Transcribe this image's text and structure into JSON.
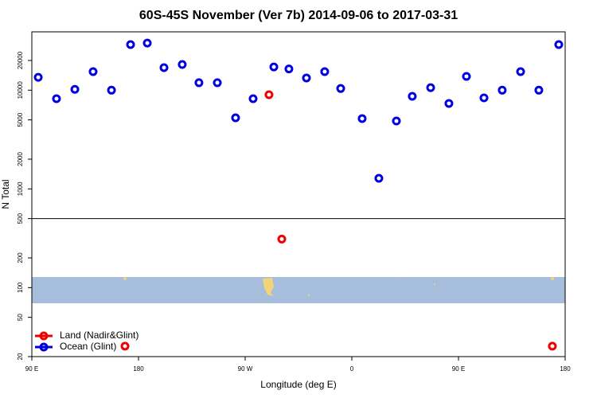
{
  "chart_data": {
    "type": "scatter",
    "title": "60S-45S November (Ver 7b)   2014-09-06 to 2017-03-31",
    "x_label": "Longitude (deg E)",
    "y_label": "N Total",
    "log_y": true,
    "xlim": [
      90,
      540
    ],
    "ylim": [
      20,
      39000
    ],
    "xticks": [
      {
        "value": 90,
        "label": "90 E"
      },
      {
        "value": 180,
        "label": "180"
      },
      {
        "value": 270,
        "label": "90 W"
      },
      {
        "value": 360,
        "label": "0"
      },
      {
        "value": 450,
        "label": "90 E"
      },
      {
        "value": 540,
        "label": "180"
      }
    ],
    "yticks": [
      20,
      50,
      100,
      200,
      500,
      1000,
      2000,
      5000,
      10000,
      20000
    ],
    "reference_line": 500,
    "legend": "bottom-left",
    "series": [
      {
        "name": "Land (Nadir&Glint)",
        "color": "#ee0000",
        "x": [
          290.1,
          300.9,
          168.6,
          529.2
        ],
        "values": [
          9000,
          310,
          25.5,
          25.5
        ]
      },
      {
        "name": "Ocean (Glint)",
        "color": "#0000dd",
        "x": [
          95.4,
          110.8,
          126.3,
          141.7,
          157.2,
          173.3,
          187.4,
          201.5,
          216.9,
          231.0,
          246.5,
          261.9,
          276.7,
          294.2,
          306.9,
          321.7,
          337.1,
          350.6,
          368.7,
          382.8,
          397.6,
          411.0,
          426.5,
          441.9,
          456.7,
          471.5,
          486.9,
          502.4,
          517.8,
          534.6
        ],
        "values": [
          13500,
          8200,
          10200,
          15400,
          10000,
          29000,
          30000,
          16900,
          18200,
          11900,
          11900,
          5250,
          8200,
          17200,
          16400,
          13300,
          15400,
          10400,
          5150,
          1280,
          4870,
          8670,
          10600,
          7340,
          13800,
          8360,
          10000,
          15400,
          10000,
          29000
        ]
      }
    ]
  }
}
